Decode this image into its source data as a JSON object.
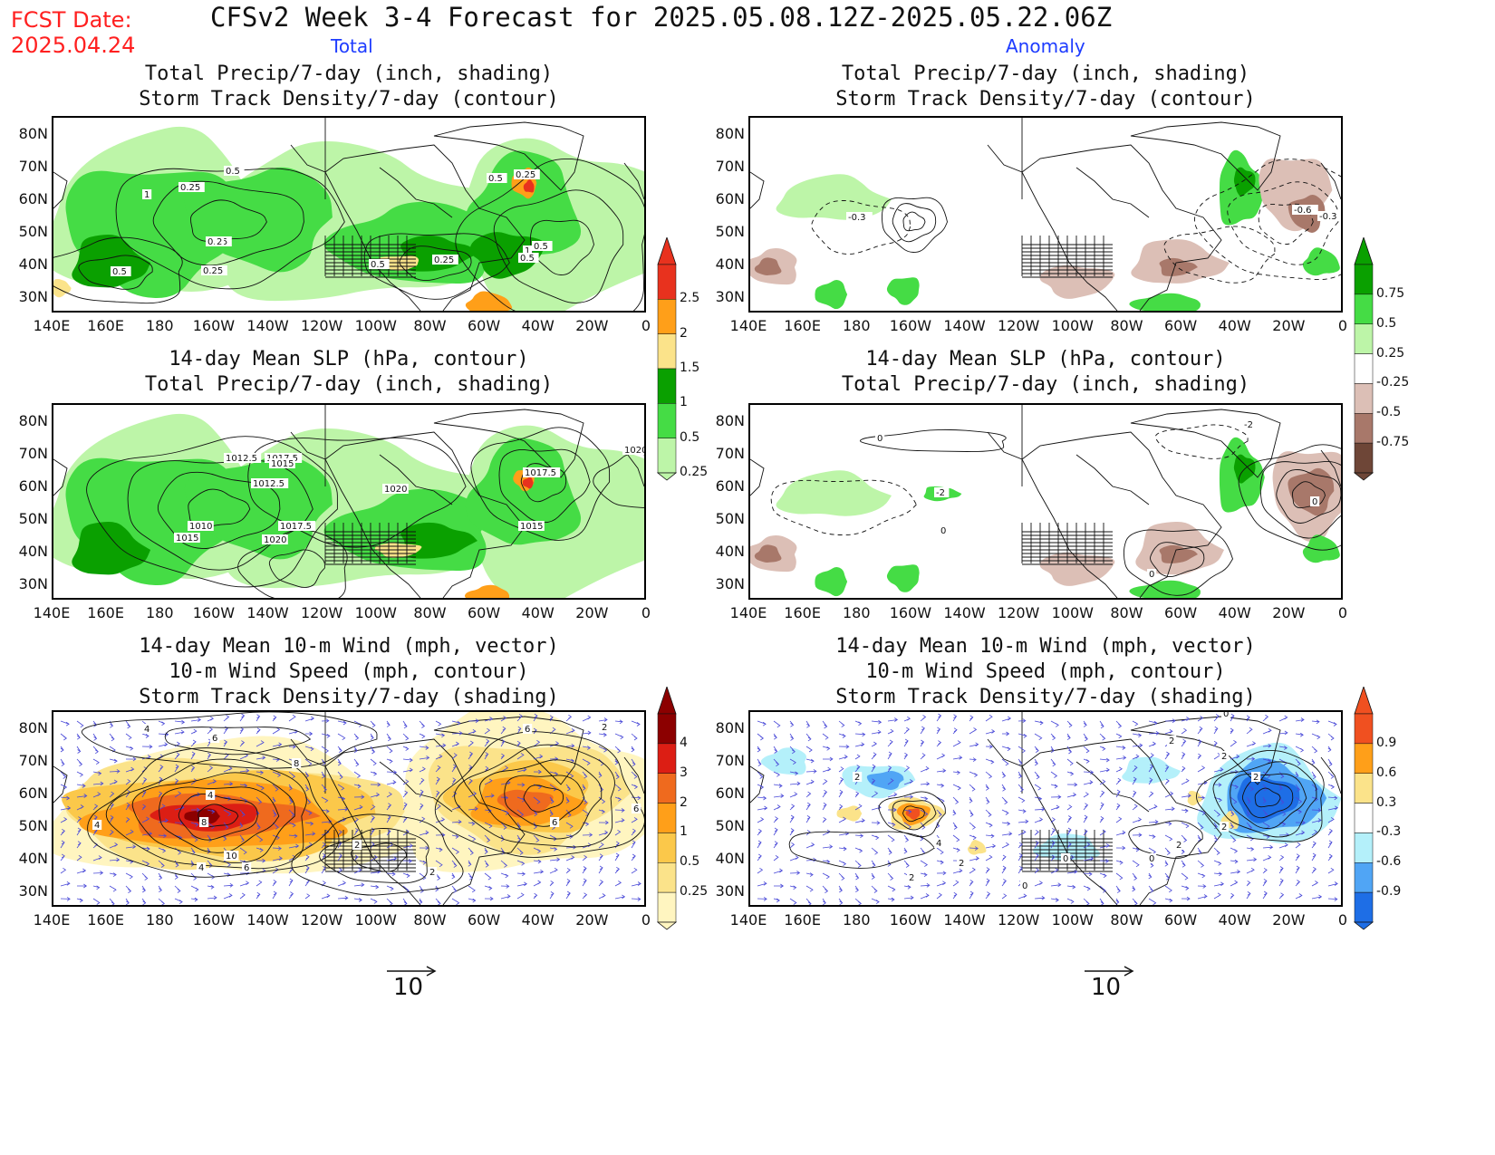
{
  "header": {
    "fcst_label": "FCST Date:",
    "fcst_date": "2025.04.24",
    "title": "CFSv2 Week 3-4 Forecast for 2025.05.08.12Z-2025.05.22.06Z",
    "col_left": "Total",
    "col_right": "Anomaly"
  },
  "axes": {
    "lat_labels": [
      "80N",
      "70N",
      "60N",
      "50N",
      "40N",
      "30N"
    ],
    "lon_labels": [
      "140E",
      "160E",
      "180",
      "160W",
      "140W",
      "120W",
      "100W",
      "80W",
      "60W",
      "40W",
      "20W",
      "0"
    ]
  },
  "panels": {
    "row1": {
      "left_title": [
        "Total Precip/7-day (inch, shading)",
        "Storm Track Density/7-day (contour)"
      ],
      "right_title": [
        "Total Precip/7-day (inch, shading)",
        "Storm Track Density/7-day (contour)"
      ],
      "left_contour_labels": [
        "0.5",
        "0.25",
        "1",
        "0.25",
        "0.5",
        "2",
        "0.5",
        "0.25",
        "0.25",
        "0.5",
        "1",
        "0.5",
        "0.5",
        "0.25"
      ],
      "right_contour_labels": [
        "-0.3",
        "-0.6",
        "-0.3"
      ]
    },
    "row2": {
      "left_title": [
        "14-day Mean SLP (hPa, contour)",
        "Total Precip/7-day (inch, shading)"
      ],
      "right_title": [
        "14-day Mean SLP (hPa, contour)",
        "Total Precip/7-day (inch, shading)"
      ],
      "left_contour_labels": [
        "1012.5",
        "1017.5",
        "1015",
        "1012.5",
        "1010",
        "1015",
        "1017.5",
        "1020",
        "1020",
        "1017.5",
        "1015",
        "1020"
      ],
      "right_contour_labels": [
        "0",
        "-2",
        "-2",
        "0",
        "0",
        "0"
      ]
    },
    "row3": {
      "left_title": [
        "14-day Mean 10-m Wind (mph, vector)",
        "10-m Wind Speed (mph, contour)",
        "Storm Track Density/7-day (shading)"
      ],
      "right_title": [
        "14-day Mean 10-m Wind (mph, vector)",
        "10-m Wind Speed (mph, contour)",
        "Storm Track Density/7-day (shading)"
      ],
      "left_contour_labels": [
        "4",
        "6",
        "8",
        "4",
        "8",
        "10",
        "6",
        "4",
        "2",
        "6",
        "2",
        "6",
        "4",
        "2",
        "6"
      ],
      "right_contour_labels": [
        "0",
        "2",
        "2",
        "2",
        "2",
        "4",
        "2",
        "0",
        "0",
        "2",
        "0",
        "2",
        "0",
        "2"
      ]
    }
  },
  "colorbars": {
    "precip_total": {
      "labels": [
        "2.5",
        "2",
        "1.5",
        "1",
        "0.5",
        "0.25"
      ],
      "colors": [
        "#e8321e",
        "#ff9f19",
        "#fbe38a",
        "#0aa000",
        "#45dc45",
        "#bdf5a8"
      ]
    },
    "precip_anom": {
      "labels": [
        "0.75",
        "0.5",
        "0.25",
        "-0.25",
        "-0.5",
        "-0.75"
      ],
      "colors": [
        "#0aa000",
        "#45dc45",
        "#bdf5a8",
        "#ffffff",
        "#dcbfb6",
        "#a8786a",
        "#6e4637"
      ]
    },
    "storm_total": {
      "labels": [
        "4",
        "3",
        "2",
        "1",
        "0.5",
        "0.25"
      ],
      "colors": [
        "#8c0000",
        "#dc1e14",
        "#ef6a1e",
        "#ff9f19",
        "#fbc84a",
        "#fbe38a",
        "#fff5c0"
      ]
    },
    "storm_anom": {
      "labels": [
        "0.9",
        "0.6",
        "0.3",
        "-0.3",
        "-0.6",
        "-0.9"
      ],
      "colors": [
        "#f05020",
        "#ff9f19",
        "#fbe38a",
        "#ffffff",
        "#b4f0fa",
        "#50a5f5",
        "#1e6ee6"
      ]
    }
  },
  "wind_reference": {
    "left_value": "10",
    "right_value": "10"
  },
  "colors": {
    "fcst": "#ff2020",
    "column_label": "#1e3cff",
    "vector": "#4a4ad8",
    "contour": "#111111"
  }
}
